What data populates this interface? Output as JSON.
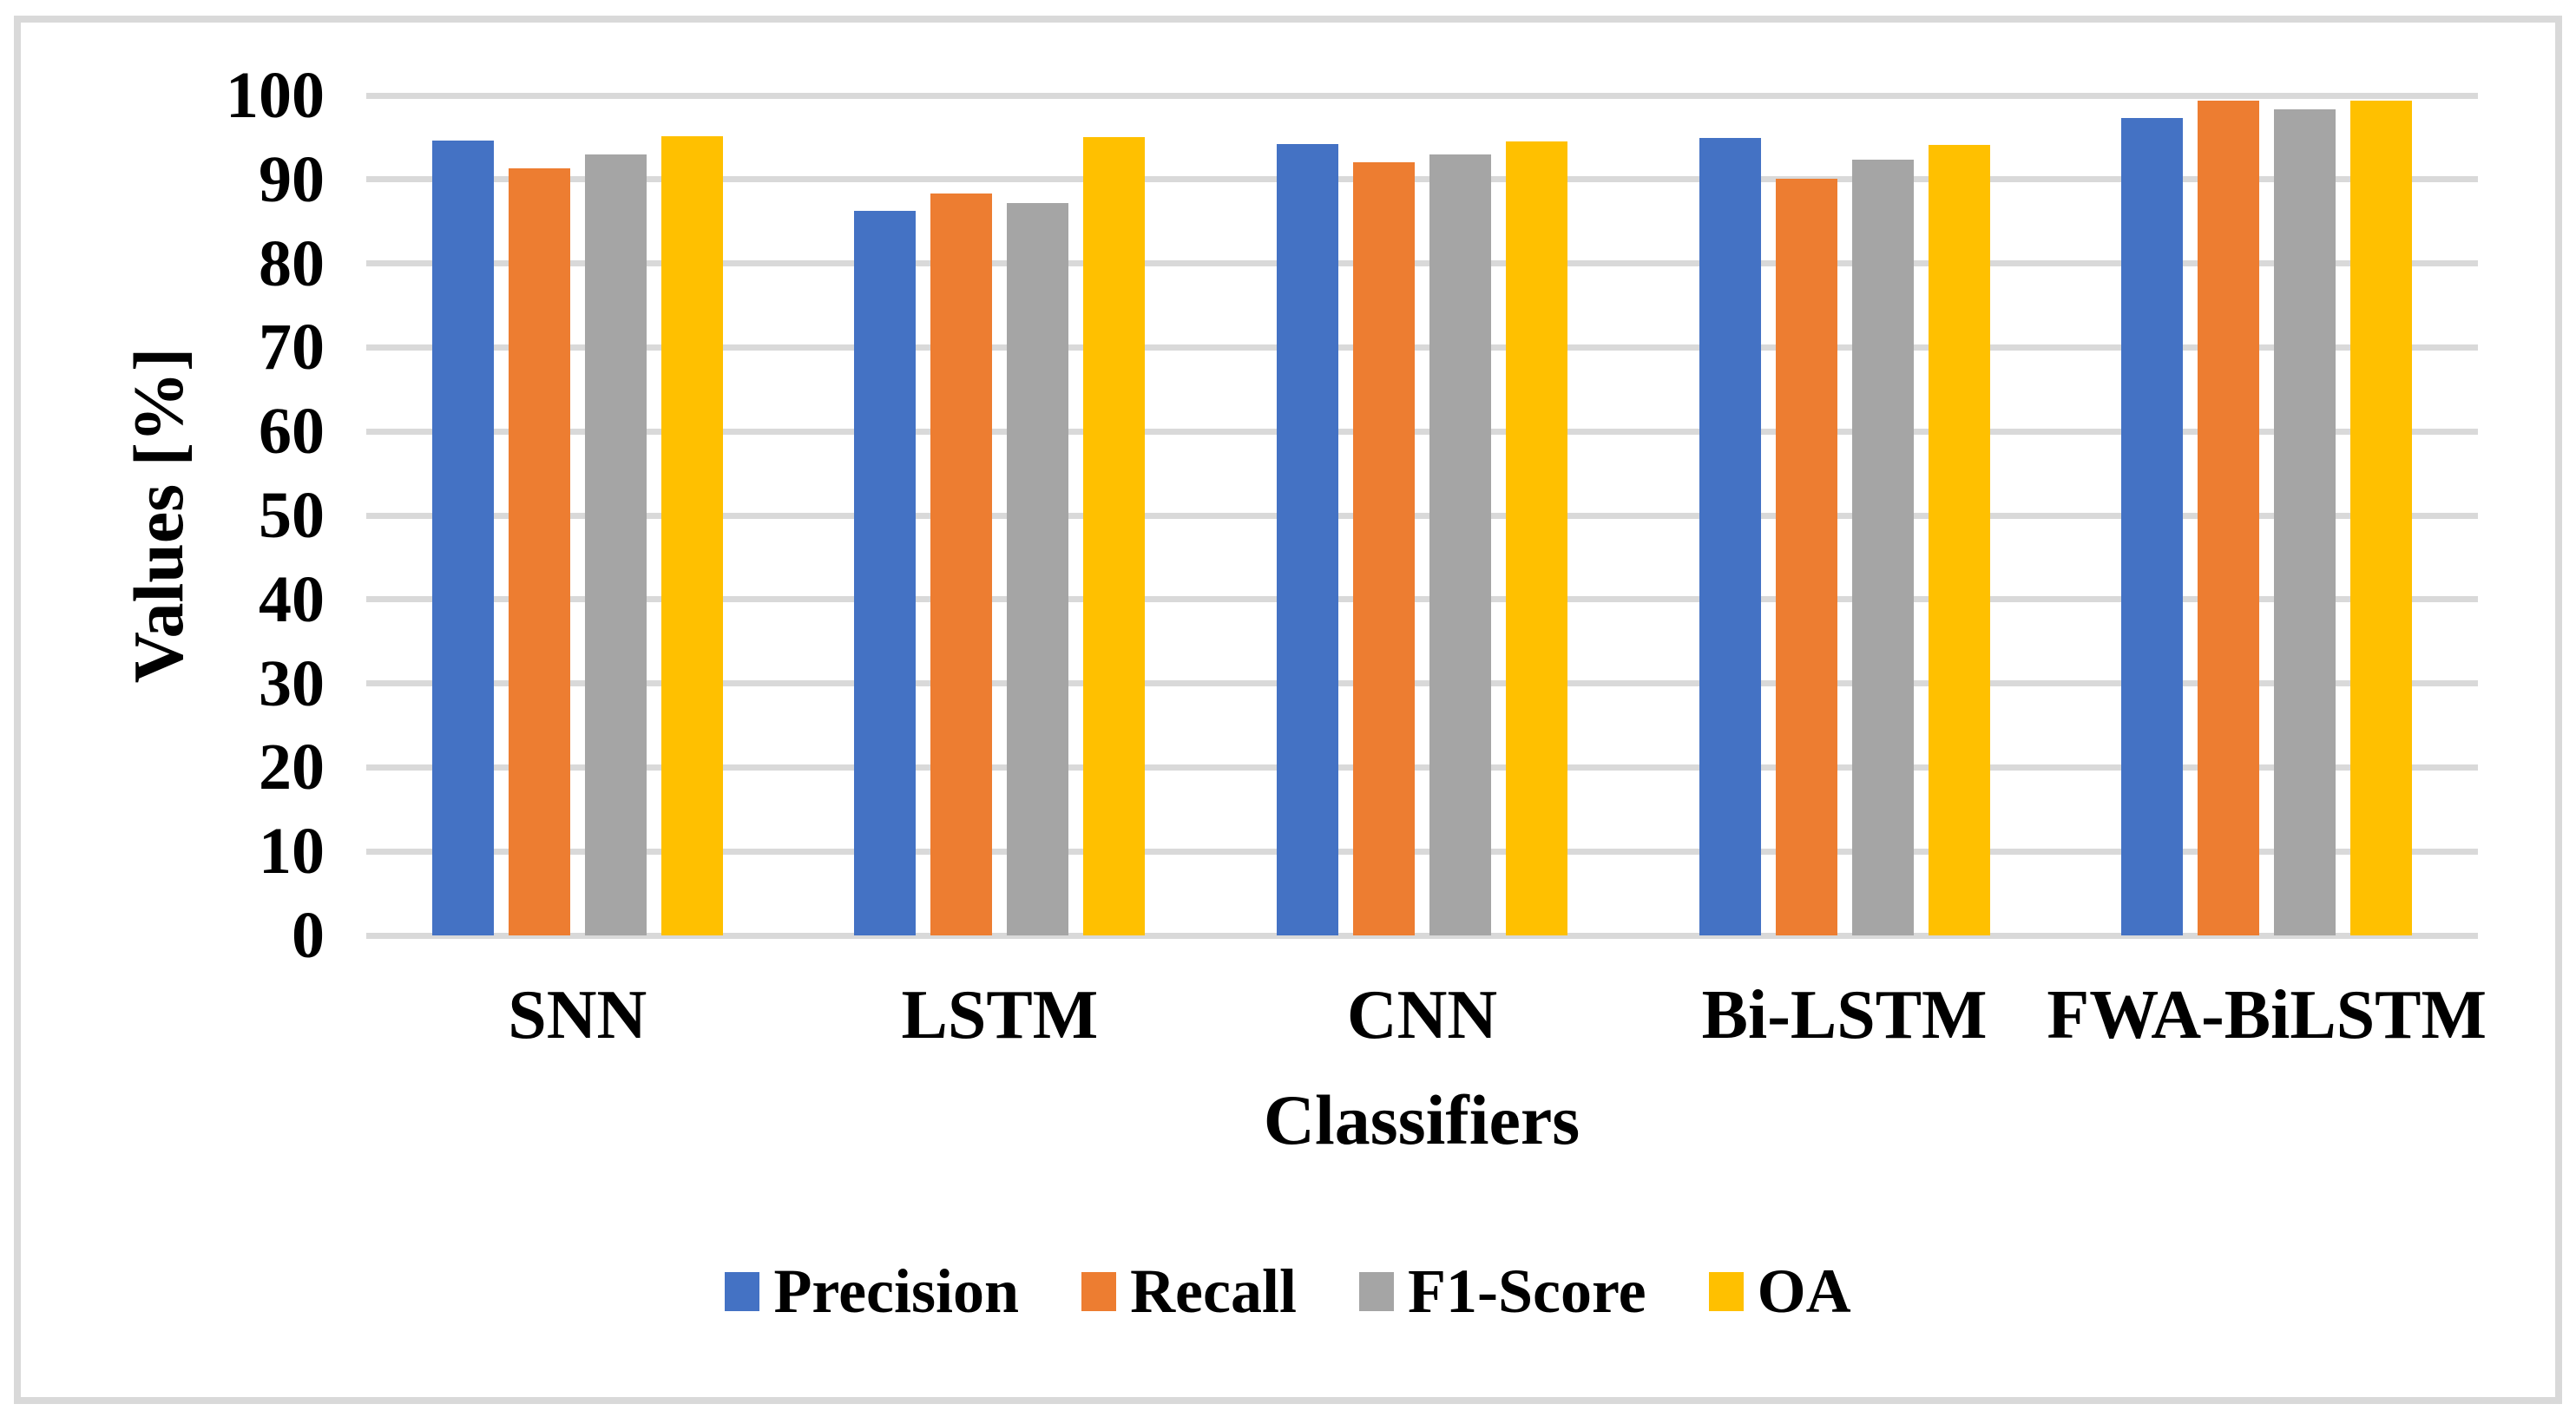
{
  "figure": {
    "border_color": "#d9d9d9",
    "background_color": "#ffffff",
    "gridline_color": "#d9d9d9"
  },
  "chart_data": {
    "type": "bar",
    "title": "",
    "xlabel": "Classifiers",
    "ylabel": "Values [%]",
    "ylim": [
      0,
      100
    ],
    "ytick_step": 10,
    "yticks": [
      0,
      10,
      20,
      30,
      40,
      50,
      60,
      70,
      80,
      90,
      100
    ],
    "grid": "horizontal",
    "legend_position": "bottom",
    "categories": [
      "SNN",
      "LSTM",
      "CNN",
      "Bi-LSTM",
      "FWA-BiLSTM"
    ],
    "series": [
      {
        "name": "Precision",
        "color": "#4472C4",
        "values": [
          94.6,
          86.3,
          94.2,
          94.9,
          97.3
        ]
      },
      {
        "name": "Recall",
        "color": "#ED7D31",
        "values": [
          91.3,
          88.3,
          92.0,
          90.1,
          99.4
        ]
      },
      {
        "name": "F1-Score",
        "color": "#A5A5A5",
        "values": [
          93.0,
          87.2,
          93.0,
          92.4,
          98.3
        ]
      },
      {
        "name": "OA",
        "color": "#FFC000",
        "values": [
          95.1,
          95.0,
          94.5,
          94.1,
          99.4
        ]
      }
    ]
  }
}
